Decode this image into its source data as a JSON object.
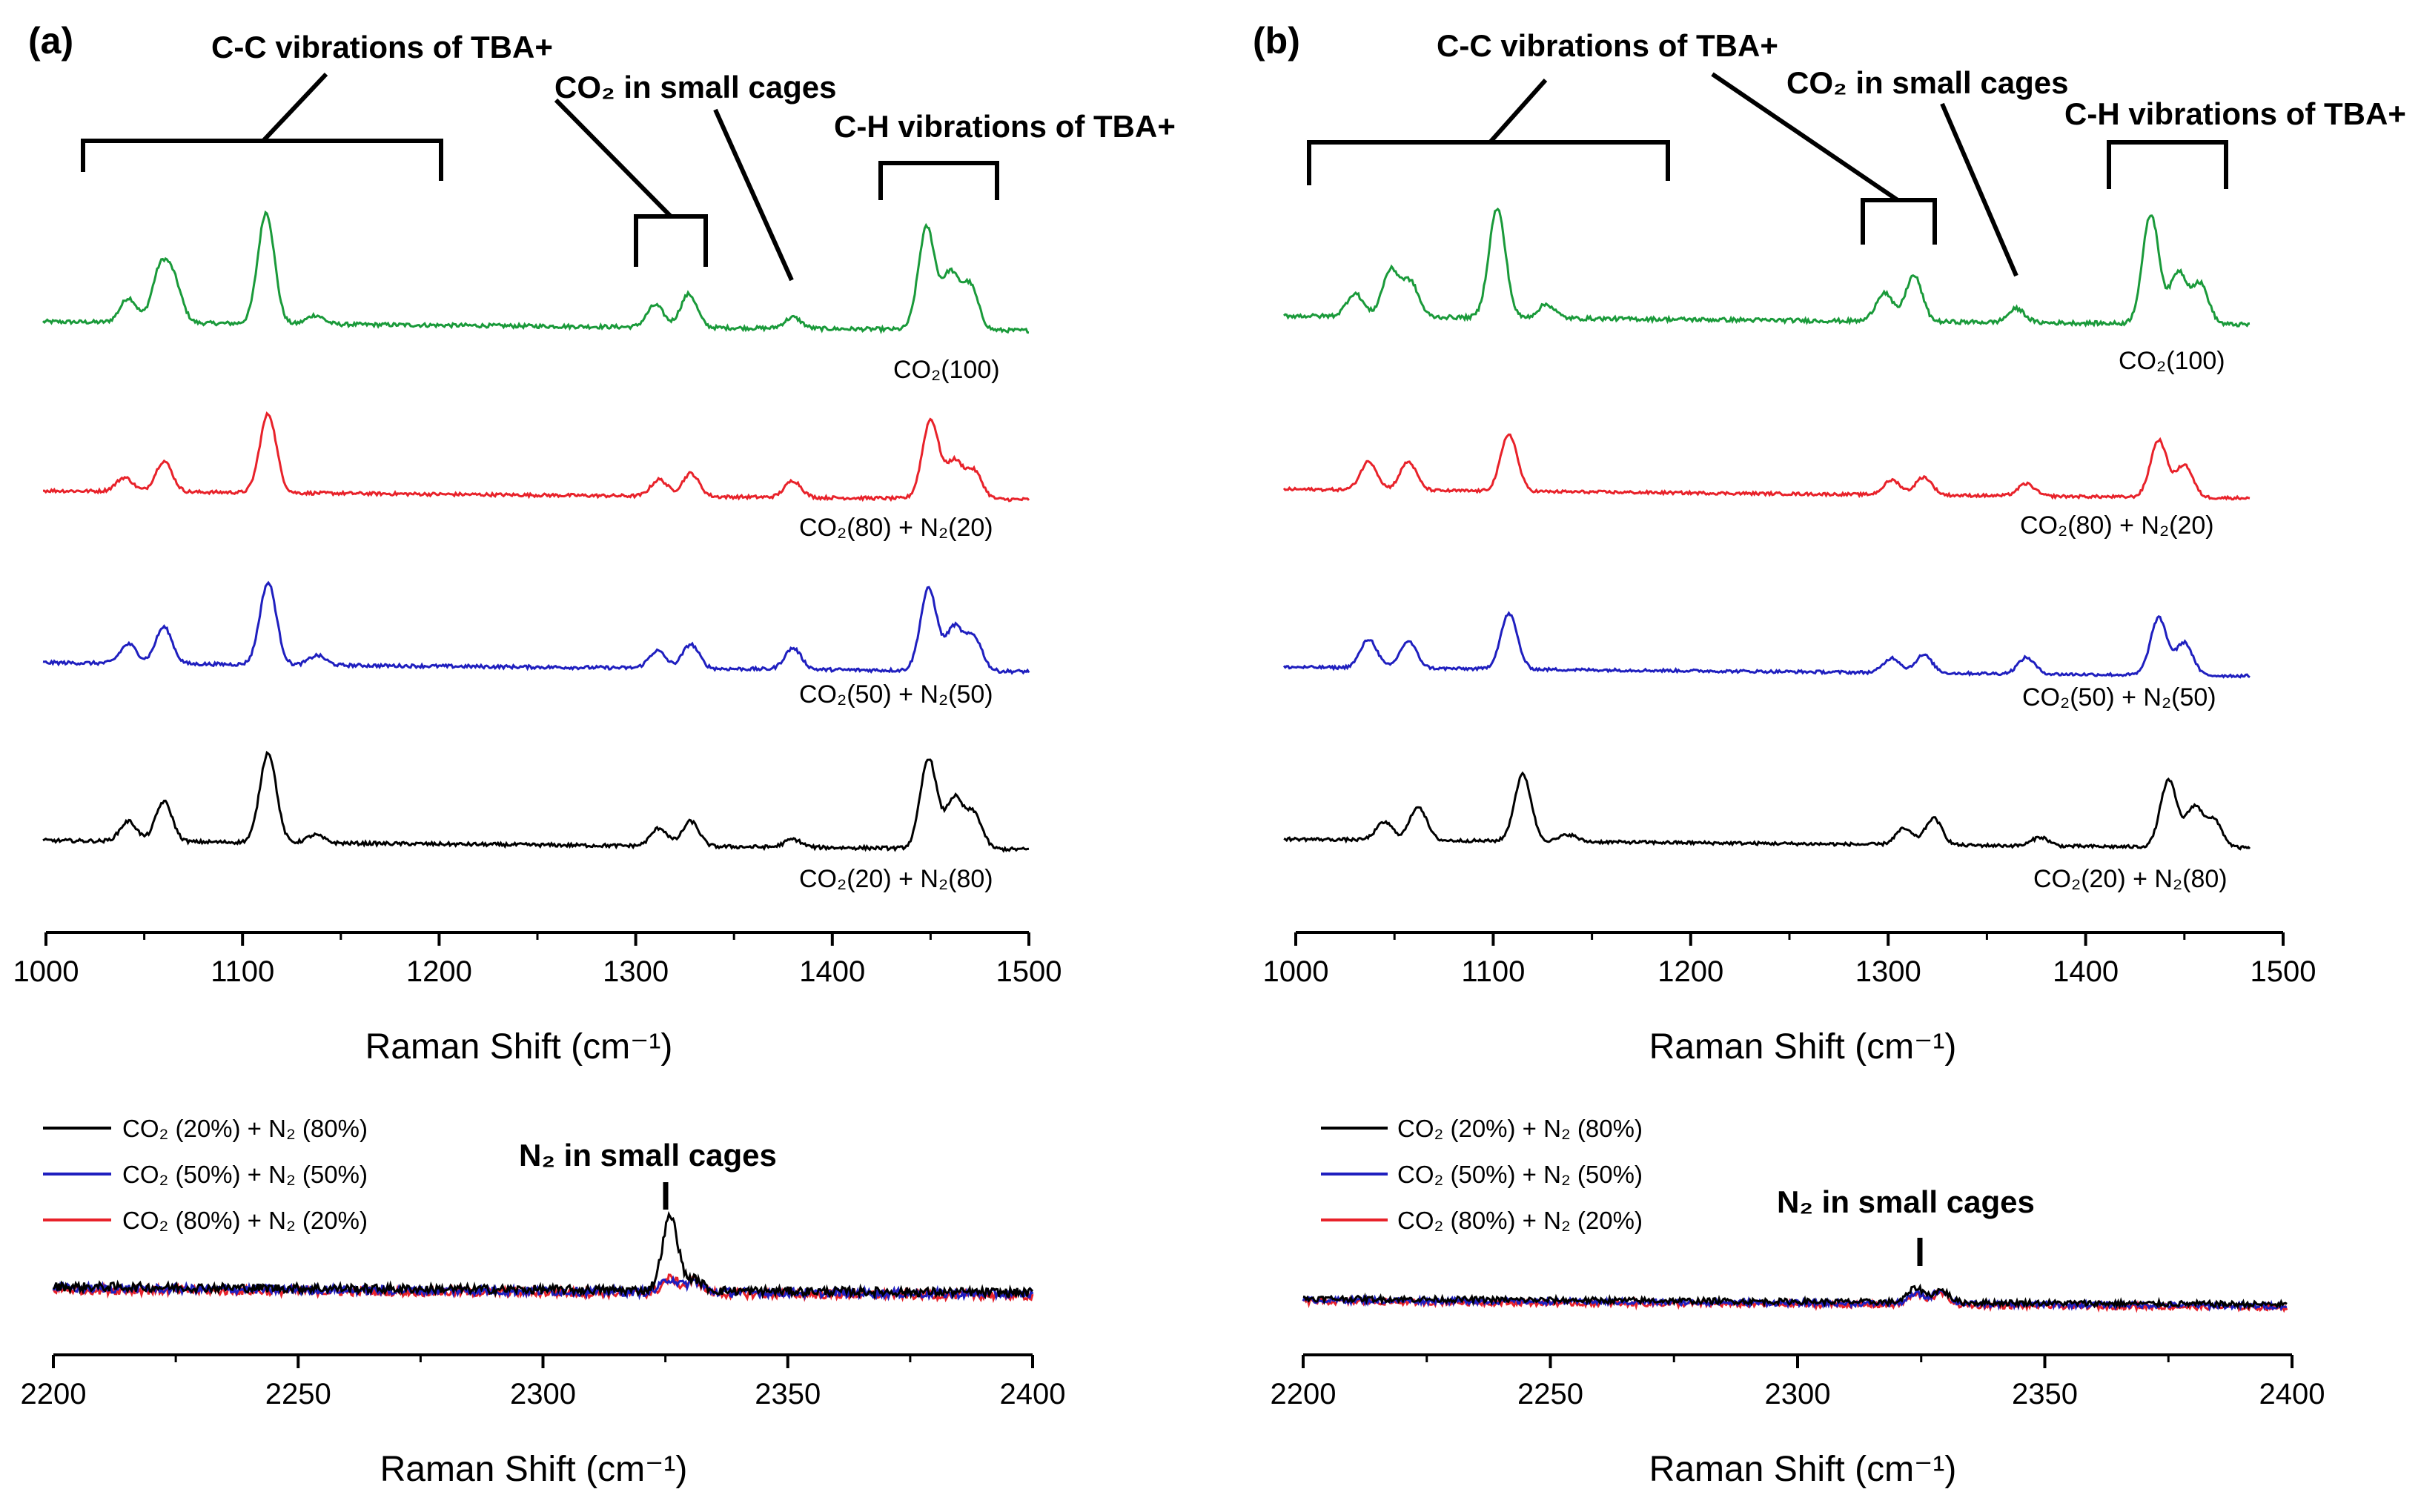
{
  "panels": [
    {
      "label": "(a)",
      "upper": {
        "x_tick_labels": [
          "1000",
          "1100",
          "1200",
          "1300",
          "1400",
          "1500"
        ],
        "x_title": "Raman Shift (cm⁻¹)",
        "annotations": [
          "C-C vibrations of TBA+",
          "CO₂ in small cages",
          "C-H vibrations of TBA+"
        ],
        "trace_labels": [
          "CO₂(100)",
          "CO₂(80) + N₂(20)",
          "CO₂(50) + N₂(50)",
          "CO₂(20) + N₂(80)"
        ]
      },
      "lower": {
        "x_tick_labels": [
          "2200",
          "2250",
          "2300",
          "2350",
          "2400"
        ],
        "x_title": "Raman Shift (cm⁻¹)",
        "annotation": "N₂ in small cages",
        "legend": [
          "CO₂ (20%) + N₂ (80%)",
          "CO₂ (50%) + N₂ (50%)",
          "CO₂ (80%) + N₂ (20%)"
        ]
      }
    },
    {
      "label": "(b)",
      "upper": {
        "x_tick_labels": [
          "1000",
          "1100",
          "1200",
          "1300",
          "1400",
          "1500"
        ],
        "x_title": "Raman Shift (cm⁻¹)",
        "annotations": [
          "C-C vibrations of TBA+",
          "CO₂ in small cages",
          "C-H vibrations of TBA+"
        ],
        "trace_labels": [
          "CO₂(100)",
          "CO₂(80) + N₂(20)",
          "CO₂(50) + N₂(50)",
          "CO₂(20) + N₂(80)"
        ]
      },
      "lower": {
        "x_tick_labels": [
          "2200",
          "2250",
          "2300",
          "2350",
          "2400"
        ],
        "x_title": "Raman Shift (cm⁻¹)",
        "annotation": "N₂ in small cages",
        "legend": [
          "CO₂ (20%) + N₂ (80%)",
          "CO₂ (50%) + N₂ (50%)",
          "CO₂ (80%) + N₂ (20%)"
        ]
      }
    }
  ],
  "colors": {
    "green": "#1a9a3a",
    "red": "#e8222a",
    "blue": "#1f1fbf",
    "black": "#000000"
  },
  "chart_data": [
    {
      "type": "line",
      "panel": "(a)",
      "xlim": [
        1000,
        1500
      ],
      "xlabel": "Raman Shift (cm⁻¹)",
      "offset_stacked": true,
      "series": [
        {
          "name": "CO₂(100)",
          "color": "green",
          "peaks": [
            [
              1042,
              0.22
            ],
            [
              1058,
              0.45
            ],
            [
              1065,
              0.35
            ],
            [
              1112,
              1.0
            ],
            [
              1137,
              0.08
            ],
            [
              1310,
              0.2
            ],
            [
              1327,
              0.3
            ],
            [
              1380,
              0.1
            ],
            [
              1448,
              0.92
            ],
            [
              1460,
              0.5
            ],
            [
              1470,
              0.4
            ]
          ]
        },
        {
          "name": "CO₂(80) + N₂(20)",
          "color": "red",
          "peaks": [
            [
              1040,
              0.15
            ],
            [
              1060,
              0.33
            ],
            [
              1113,
              0.85
            ],
            [
              1312,
              0.18
            ],
            [
              1328,
              0.25
            ],
            [
              1380,
              0.18
            ],
            [
              1450,
              0.85
            ],
            [
              1462,
              0.4
            ],
            [
              1472,
              0.3
            ]
          ]
        },
        {
          "name": "CO₂(50) + N₂(50)",
          "color": "blue",
          "peaks": [
            [
              1042,
              0.2
            ],
            [
              1060,
              0.38
            ],
            [
              1113,
              0.85
            ],
            [
              1138,
              0.1
            ],
            [
              1311,
              0.18
            ],
            [
              1328,
              0.25
            ],
            [
              1380,
              0.22
            ],
            [
              1449,
              0.85
            ],
            [
              1462,
              0.45
            ],
            [
              1472,
              0.35
            ]
          ]
        },
        {
          "name": "CO₂(20) + N₂(80)",
          "color": "black",
          "peaks": [
            [
              1042,
              0.2
            ],
            [
              1060,
              0.4
            ],
            [
              1113,
              0.9
            ],
            [
              1137,
              0.08
            ],
            [
              1312,
              0.18
            ],
            [
              1328,
              0.25
            ],
            [
              1380,
              0.08
            ],
            [
              1449,
              0.9
            ],
            [
              1462,
              0.5
            ],
            [
              1472,
              0.35
            ]
          ]
        }
      ]
    },
    {
      "type": "line",
      "panel": "(a)",
      "xlim": [
        2200,
        2400
      ],
      "xlabel": "Raman Shift (cm⁻¹)",
      "series": [
        {
          "name": "CO₂ (20%) + N₂ (80%)",
          "color": "black",
          "peaks": [
            [
              2326,
              1.0
            ],
            [
              2331,
              0.15
            ]
          ]
        },
        {
          "name": "CO₂ (50%) + N₂ (50%)",
          "color": "blue",
          "peaks": [
            [
              2326,
              0.18
            ],
            [
              2331,
              0.15
            ]
          ]
        },
        {
          "name": "CO₂ (80%) + N₂ (20%)",
          "color": "red",
          "peaks": [
            [
              2326,
              0.2
            ],
            [
              2331,
              0.18
            ]
          ]
        }
      ]
    },
    {
      "type": "line",
      "panel": "(b)",
      "xlim": [
        1000,
        1500
      ],
      "xlabel": "Raman Shift (cm⁻¹)",
      "offset_stacked": true,
      "series": [
        {
          "name": "CO₂(100)",
          "color": "green",
          "peaks": [
            [
              1030,
              0.2
            ],
            [
              1048,
              0.4
            ],
            [
              1058,
              0.3
            ],
            [
              1102,
              0.95
            ],
            [
              1127,
              0.12
            ],
            [
              1298,
              0.25
            ],
            [
              1313,
              0.4
            ],
            [
              1365,
              0.12
            ],
            [
              1433,
              0.95
            ],
            [
              1447,
              0.45
            ],
            [
              1458,
              0.35
            ]
          ]
        },
        {
          "name": "CO₂(80) + N₂(20)",
          "color": "red",
          "peaks": [
            [
              1037,
              0.35
            ],
            [
              1057,
              0.35
            ],
            [
              1108,
              0.7
            ],
            [
              1302,
              0.18
            ],
            [
              1318,
              0.22
            ],
            [
              1370,
              0.15
            ],
            [
              1437,
              0.7
            ],
            [
              1450,
              0.4
            ]
          ]
        },
        {
          "name": "CO₂(50) + N₂(50)",
          "color": "blue",
          "peaks": [
            [
              1037,
              0.35
            ],
            [
              1057,
              0.33
            ],
            [
              1108,
              0.68
            ],
            [
              1302,
              0.18
            ],
            [
              1318,
              0.22
            ],
            [
              1370,
              0.2
            ],
            [
              1437,
              0.7
            ],
            [
              1450,
              0.4
            ]
          ]
        },
        {
          "name": "CO₂(20) + N₂(80)",
          "color": "black",
          "peaks": [
            [
              1045,
              0.2
            ],
            [
              1062,
              0.38
            ],
            [
              1115,
              0.75
            ],
            [
              1138,
              0.08
            ],
            [
              1308,
              0.18
            ],
            [
              1323,
              0.3
            ],
            [
              1377,
              0.1
            ],
            [
              1442,
              0.75
            ],
            [
              1455,
              0.45
            ],
            [
              1465,
              0.3
            ]
          ]
        }
      ]
    },
    {
      "type": "line",
      "panel": "(b)",
      "xlim": [
        2200,
        2400
      ],
      "xlabel": "Raman Shift (cm⁻¹)",
      "series": [
        {
          "name": "CO₂ (20%) + N₂ (80%)",
          "color": "black",
          "peaks": [
            [
              2324,
              0.3
            ],
            [
              2329,
              0.25
            ]
          ]
        },
        {
          "name": "CO₂ (50%) + N₂ (50%)",
          "color": "blue",
          "peaks": [
            [
              2324,
              0.2
            ],
            [
              2329,
              0.28
            ]
          ]
        },
        {
          "name": "CO₂ (80%) + N₂ (20%)",
          "color": "red",
          "peaks": [
            [
              2324,
              0.22
            ],
            [
              2329,
              0.25
            ]
          ]
        }
      ]
    }
  ]
}
